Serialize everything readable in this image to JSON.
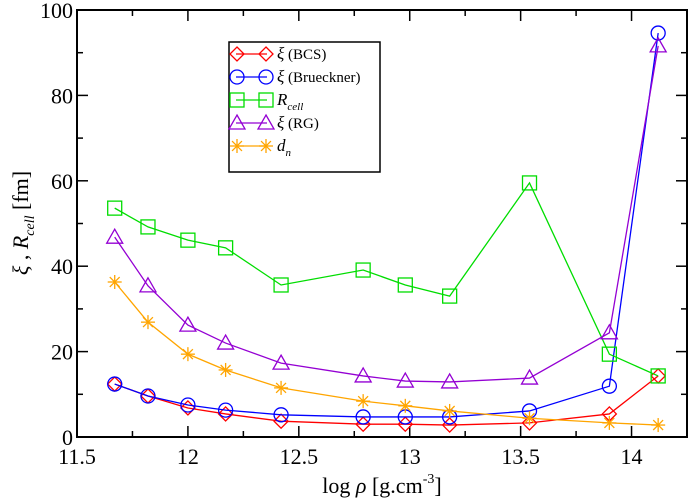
{
  "chart_data": {
    "type": "line",
    "title": "",
    "xlabel": {
      "prefix": "log ",
      "symbol": "ρ",
      "unit": " [g.cm",
      "sup": "-3",
      "close": "]"
    },
    "ylabel": {
      "xi": "ξ",
      "sep": " , ",
      "R": "R",
      "sub": "cell",
      "unit": " [fm]"
    },
    "xlim": [
      11.5,
      14.25
    ],
    "ylim": [
      0,
      100
    ],
    "xticks": [
      "11.5",
      "12",
      "12.5",
      "13",
      "13.5",
      "14"
    ],
    "xtick_values": [
      11.5,
      12,
      12.5,
      13,
      13.5,
      14
    ],
    "yticks": [
      "0",
      "20",
      "40",
      "60",
      "80",
      "100"
    ],
    "ytick_values": [
      0,
      20,
      40,
      60,
      80,
      100
    ],
    "x": [
      11.67,
      11.82,
      12.0,
      12.17,
      12.42,
      12.79,
      12.98,
      13.18,
      13.54,
      13.9,
      14.12
    ],
    "legend_position": "upper-left-center",
    "series": [
      {
        "name": "ξ (BCS)",
        "label_main": "ξ",
        "label_rest": " (BCS)",
        "color": "#ff0000",
        "marker": "diamond",
        "values": [
          12.4,
          9.6,
          6.8,
          5.4,
          3.7,
          3.0,
          3.0,
          2.8,
          3.3,
          5.4,
          14.3
        ]
      },
      {
        "name": "ξ (Brueckner)",
        "label_main": "ξ",
        "label_rest": " (Brueckner)",
        "color": "#0000ff",
        "marker": "circle",
        "values": [
          12.4,
          9.6,
          7.5,
          6.3,
          5.2,
          4.7,
          4.7,
          4.7,
          6.1,
          11.9,
          94.6
        ]
      },
      {
        "name": "R cell",
        "label_main": "R",
        "label_sub": "cell",
        "color": "#00dd00",
        "marker": "square",
        "values": [
          53.6,
          49.2,
          46.1,
          44.3,
          35.6,
          39.1,
          35.6,
          33.0,
          59.5,
          19.4,
          14.3
        ]
      },
      {
        "name": "ξ (RG)",
        "label_main": "ξ",
        "label_rest": " (RG)",
        "color": "#9400d3",
        "marker": "triangle",
        "values": [
          46.8,
          35.4,
          26.2,
          22.0,
          17.3,
          14.3,
          13.1,
          12.9,
          13.8,
          24.4,
          91.6
        ]
      },
      {
        "name": "d n",
        "label_main": "d",
        "label_sub": "n",
        "color": "#ffa500",
        "marker": "star",
        "values": [
          36.3,
          26.9,
          19.4,
          15.7,
          11.5,
          8.4,
          7.3,
          6.1,
          4.4,
          3.3,
          2.8
        ]
      }
    ]
  }
}
